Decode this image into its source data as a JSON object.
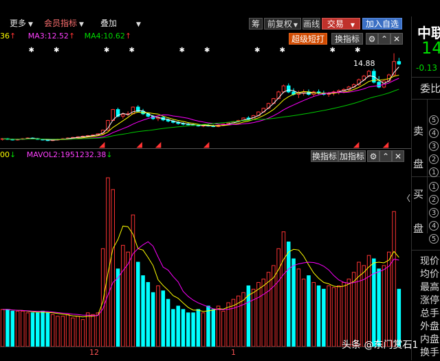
{
  "toolbar": {
    "more": "更多",
    "member_indicator": "会员指标",
    "overlay": "叠加",
    "chips": "筹",
    "pre_adjust": "前复权",
    "line_drawing": "画线",
    "trade": "交易",
    "add_watchlist": "加入自选"
  },
  "ma_legend": {
    "ma2_tail": "36",
    "ma3": "MA3:12.52",
    "ma4": "MA4:10.62",
    "up_arrow": "↑"
  },
  "main_buttons": {
    "super_shortline": "超级短打",
    "switch_indicator": "换指标",
    "gear": "⚙",
    "up": "⌃",
    "close": "✕"
  },
  "price_annotation": "14.88",
  "vol_legend": {
    "head": "00",
    "down_arrow": "↓",
    "mavol2": "MAVOL2:1951232.38"
  },
  "vol_buttons": {
    "switch_indicator": "换指标",
    "add_indicator": "加指标",
    "gear": "⚙",
    "up": "⌃",
    "close": "✕"
  },
  "right_panel": {
    "stock_name": "中联",
    "price": "14",
    "change": "-0.13",
    "committee_ratio": "委比",
    "sell": "卖",
    "sell_pan": "盘",
    "buy": "买",
    "buy_pan": "盘",
    "sell_levels": [
      "5",
      "4",
      "3",
      "2",
      "1"
    ],
    "buy_levels": [
      "1",
      "2",
      "3",
      "4",
      "5"
    ],
    "stats": [
      "现价",
      "均价",
      "最高",
      "涨停",
      "总手",
      "外盘",
      "内盘",
      "换手"
    ],
    "collapse": "〈"
  },
  "date_labels": {
    "month12": "12",
    "month1": "1"
  },
  "watermark": "头条 @东门赏石1",
  "colors": {
    "up": "#ff3333",
    "down": "#00ffff",
    "ma_white": "#ffffff",
    "ma_yellow": "#ffff00",
    "ma_magenta": "#ff00ff",
    "ma_green": "#00cc00",
    "trade_btn": "#c0312b",
    "watchlist_btn": "#3a6fc4",
    "super_btn": "#d04a00"
  },
  "chart_data": {
    "type": "candlestick+volume",
    "candles": [
      [
        7.8,
        7.9,
        7.7,
        7.85
      ],
      [
        7.85,
        7.9,
        7.75,
        7.8
      ],
      [
        7.8,
        7.85,
        7.7,
        7.75
      ],
      [
        7.75,
        7.85,
        7.7,
        7.8
      ],
      [
        7.8,
        7.9,
        7.75,
        7.85
      ],
      [
        7.85,
        7.95,
        7.8,
        7.9
      ],
      [
        7.9,
        7.95,
        7.8,
        7.85
      ],
      [
        7.85,
        7.9,
        7.75,
        7.8
      ],
      [
        7.8,
        7.85,
        7.7,
        7.75
      ],
      [
        7.75,
        7.8,
        7.65,
        7.7
      ],
      [
        7.7,
        7.8,
        7.65,
        7.75
      ],
      [
        7.75,
        7.85,
        7.7,
        7.8
      ],
      [
        7.8,
        7.9,
        7.75,
        7.85
      ],
      [
        7.85,
        7.95,
        7.8,
        7.9
      ],
      [
        7.9,
        8.0,
        7.85,
        7.95
      ],
      [
        7.95,
        8.05,
        7.9,
        8.0
      ],
      [
        8.0,
        8.1,
        7.95,
        8.05
      ],
      [
        8.05,
        8.15,
        8.0,
        8.1
      ],
      [
        8.1,
        8.2,
        8.05,
        8.15
      ],
      [
        8.15,
        8.3,
        8.1,
        8.25
      ],
      [
        8.25,
        8.6,
        8.2,
        8.55
      ],
      [
        8.55,
        9.4,
        8.5,
        9.35
      ],
      [
        9.35,
        10.3,
        9.3,
        10.25
      ],
      [
        10.25,
        10.4,
        9.6,
        9.7
      ],
      [
        9.7,
        10.0,
        9.5,
        9.85
      ],
      [
        9.85,
        10.1,
        9.7,
        9.9
      ],
      [
        9.9,
        10.5,
        9.85,
        10.45
      ],
      [
        10.45,
        10.6,
        10.0,
        10.1
      ],
      [
        10.1,
        10.3,
        9.8,
        9.9
      ],
      [
        9.9,
        10.0,
        9.6,
        9.7
      ],
      [
        9.7,
        9.8,
        9.4,
        9.5
      ],
      [
        9.5,
        9.7,
        9.3,
        9.6
      ],
      [
        9.6,
        9.7,
        9.3,
        9.4
      ],
      [
        9.4,
        9.5,
        9.2,
        9.3
      ],
      [
        9.3,
        9.4,
        9.1,
        9.2
      ],
      [
        9.2,
        9.3,
        9.0,
        9.1
      ],
      [
        9.1,
        9.2,
        8.95,
        9.05
      ],
      [
        9.05,
        9.15,
        8.95,
        9.0
      ],
      [
        9.0,
        9.1,
        8.9,
        8.95
      ],
      [
        8.95,
        9.05,
        8.85,
        8.9
      ],
      [
        8.9,
        9.0,
        8.8,
        8.95
      ],
      [
        8.95,
        9.05,
        8.85,
        8.9
      ],
      [
        8.9,
        9.0,
        8.8,
        8.85
      ],
      [
        8.85,
        9.0,
        8.8,
        8.95
      ],
      [
        8.95,
        9.1,
        8.9,
        9.05
      ],
      [
        9.05,
        9.2,
        9.0,
        9.15
      ],
      [
        9.15,
        9.3,
        9.1,
        9.25
      ],
      [
        9.25,
        9.4,
        9.2,
        9.35
      ],
      [
        9.35,
        9.6,
        9.3,
        9.55
      ],
      [
        9.55,
        9.7,
        9.4,
        9.45
      ],
      [
        9.45,
        9.8,
        9.4,
        9.75
      ],
      [
        9.75,
        10.1,
        9.7,
        10.05
      ],
      [
        10.05,
        10.4,
        10.0,
        10.35
      ],
      [
        10.35,
        10.8,
        10.3,
        10.75
      ],
      [
        10.75,
        11.2,
        10.7,
        11.15
      ],
      [
        11.15,
        11.8,
        11.1,
        11.7
      ],
      [
        11.7,
        12.3,
        11.6,
        12.2
      ],
      [
        12.2,
        12.4,
        11.6,
        11.7
      ],
      [
        11.7,
        12.0,
        11.4,
        11.5
      ],
      [
        11.5,
        11.8,
        11.2,
        11.6
      ],
      [
        11.6,
        11.9,
        11.4,
        11.7
      ],
      [
        11.7,
        11.9,
        11.4,
        11.5
      ],
      [
        11.5,
        11.8,
        11.3,
        11.7
      ],
      [
        11.7,
        11.9,
        11.5,
        11.6
      ],
      [
        11.6,
        11.8,
        11.4,
        11.5
      ],
      [
        11.5,
        11.7,
        11.3,
        11.6
      ],
      [
        11.6,
        11.8,
        11.4,
        11.7
      ],
      [
        11.7,
        11.9,
        11.5,
        11.8
      ],
      [
        11.8,
        12.0,
        11.6,
        11.9
      ],
      [
        11.9,
        12.2,
        11.8,
        12.1
      ],
      [
        12.1,
        12.4,
        12.0,
        12.3
      ],
      [
        12.3,
        12.8,
        12.2,
        12.7
      ],
      [
        12.7,
        13.1,
        12.6,
        13.0
      ],
      [
        13.0,
        13.5,
        12.9,
        13.4
      ],
      [
        13.4,
        13.6,
        12.4,
        12.5
      ],
      [
        12.5,
        13.0,
        12.0,
        12.1
      ],
      [
        12.1,
        12.7,
        12.0,
        12.6
      ],
      [
        12.6,
        13.2,
        12.5,
        13.1
      ],
      [
        13.1,
        14.88,
        13.0,
        14.2
      ],
      [
        14.2,
        14.5,
        13.9,
        14.0
      ]
    ],
    "volume": [
      0.22,
      0.22,
      0.21,
      0.21,
      0.21,
      0.2,
      0.2,
      0.2,
      0.21,
      0.2,
      0.19,
      0.18,
      0.18,
      0.19,
      0.17,
      0.18,
      0.16,
      0.2,
      0.19,
      0.2,
      0.58,
      1.0,
      0.93,
      0.46,
      0.6,
      0.56,
      0.78,
      0.5,
      0.42,
      0.38,
      0.32,
      0.36,
      0.33,
      0.28,
      0.22,
      0.24,
      0.22,
      0.2,
      0.2,
      0.22,
      0.2,
      0.24,
      0.22,
      0.24,
      0.21,
      0.26,
      0.28,
      0.3,
      0.32,
      0.36,
      0.34,
      0.38,
      0.4,
      0.44,
      0.48,
      0.58,
      0.68,
      0.62,
      0.52,
      0.46,
      0.4,
      0.42,
      0.38,
      0.36,
      0.34,
      0.36,
      0.35,
      0.36,
      0.38,
      0.4,
      0.44,
      0.5,
      0.48,
      0.54,
      0.52,
      0.46,
      0.48,
      0.56,
      0.8,
      0.34
    ]
  }
}
